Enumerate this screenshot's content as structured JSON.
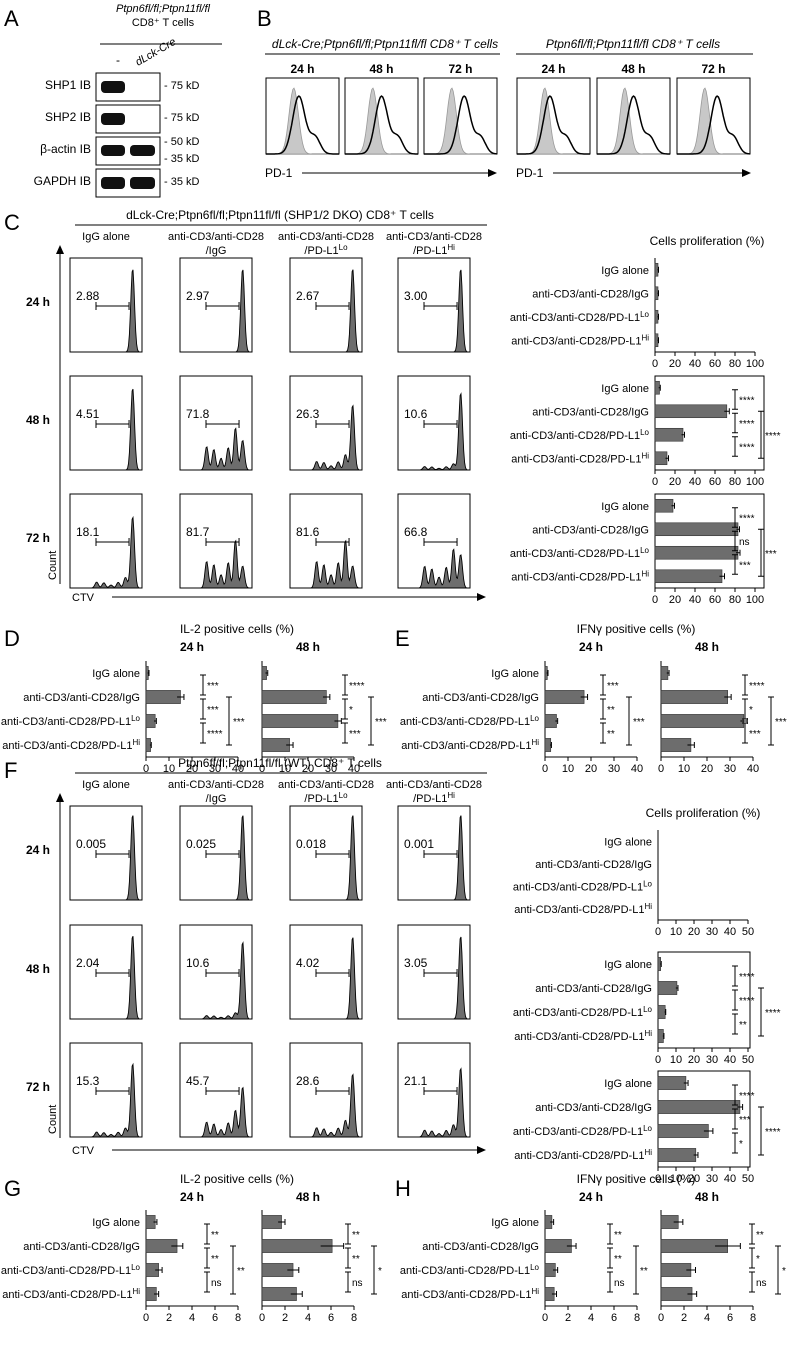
{
  "panel_labels": {
    "A": "A",
    "B": "B",
    "C": "C",
    "D": "D",
    "E": "E",
    "F": "F",
    "G": "G",
    "H": "H"
  },
  "panelA": {
    "genotype": "Ptpn6fl/fl;Ptpn11fl/fl",
    "cells": "CD8⁺ T cells",
    "lane_minus": "-",
    "lane_cre": "dLck-Cre",
    "blots": [
      {
        "label": "SHP1 IB",
        "marker": "- 75 kD"
      },
      {
        "label": "SHP2 IB",
        "marker": "- 75 kD"
      },
      {
        "label": "β-actin IB",
        "marker": "- 50 kD",
        "marker2": "- 35 kD"
      },
      {
        "label": "GAPDH IB",
        "marker": "- 35 kD"
      }
    ]
  },
  "panelB": {
    "left_title": "dLck-Cre;Ptpn6fl/fl;Ptpn11fl/fl CD8⁺ T cells",
    "right_title": "Ptpn6fl/fl;Ptpn11fl/fl CD8⁺ T cells",
    "times": [
      "24 h",
      "48 h",
      "72 h"
    ],
    "axis": "PD-1"
  },
  "panelC": {
    "title": "dLck-Cre;Ptpn6fl/fl;Ptpn11fl/fl (SHP1/2 DKO) CD8⁺ T cells",
    "conditions": [
      "IgG alone",
      "anti-CD3/anti-CD28 /IgG",
      "anti-CD3/anti-CD28 /PD-L1Lo",
      "anti-CD3/anti-CD28 /PD-L1Hi"
    ],
    "times": [
      "24 h",
      "48 h",
      "72 h"
    ],
    "gate_values": [
      [
        "2.88",
        "2.97",
        "2.67",
        "3.00"
      ],
      [
        "4.51",
        "71.8",
        "26.3",
        "10.6"
      ],
      [
        "18.1",
        "81.7",
        "81.6",
        "66.8"
      ]
    ],
    "y_axis": "Count",
    "x_axis": "CTV"
  },
  "panelF": {
    "title": "Ptpn6fl/fl;Ptpn11fl/fl (WT) CD8⁺ T cells",
    "gate_values": [
      [
        "0.005",
        "0.025",
        "0.018",
        "0.001"
      ],
      [
        "2.04",
        "10.6",
        "4.02",
        "3.05"
      ],
      [
        "15.3",
        "45.7",
        "28.6",
        "21.1"
      ]
    ],
    "y_axis": "Count",
    "x_axis": "CTV"
  },
  "bar_categories": [
    "IgG alone",
    "anti-CD3/anti-CD28/IgG",
    "anti-CD3/anti-CD28/PD-L1Lo",
    "anti-CD3/anti-CD28/PD-L1Hi"
  ],
  "chart_data": [
    {
      "id": "C_prolif",
      "type": "bar",
      "orientation": "horizontal",
      "title": "Cells proliferation (%)",
      "categories": [
        "IgG alone",
        "anti-CD3/anti-CD28/IgG",
        "anti-CD3/anti-CD28/PD-L1Lo",
        "anti-CD3/anti-CD28/PD-L1Hi"
      ],
      "xlim": [
        0,
        100
      ],
      "ticks": [
        0,
        20,
        40,
        60,
        80,
        100
      ],
      "series": [
        {
          "name": "24 h",
          "values": [
            3,
            3,
            3,
            3
          ],
          "errors": [
            0.5,
            0.5,
            0.5,
            0.5
          ],
          "sig": []
        },
        {
          "name": "48 h",
          "values": [
            4.5,
            71.8,
            28,
            12
          ],
          "errors": [
            0.8,
            2.5,
            1.5,
            1.5
          ],
          "sig": [
            {
              "a": 0,
              "b": 1,
              "label": "****"
            },
            {
              "a": 1,
              "b": 2,
              "label": "****"
            },
            {
              "a": 2,
              "b": 3,
              "label": "****"
            },
            {
              "a": 1,
              "b": 3,
              "label": "****"
            }
          ]
        },
        {
          "name": "72 h",
          "values": [
            18,
            83,
            83,
            67
          ],
          "errors": [
            1.5,
            1.5,
            2,
            2.5
          ],
          "sig": [
            {
              "a": 0,
              "b": 1,
              "label": "****"
            },
            {
              "a": 1,
              "b": 2,
              "label": "ns"
            },
            {
              "a": 2,
              "b": 3,
              "label": "***"
            },
            {
              "a": 1,
              "b": 3,
              "label": "***"
            }
          ]
        }
      ]
    },
    {
      "id": "D_il2",
      "type": "bar",
      "orientation": "horizontal",
      "title": "IL-2 positive cells (%)",
      "categories": [
        "IgG alone",
        "anti-CD3/anti-CD28/IgG",
        "anti-CD3/anti-CD28/PD-L1Lo",
        "anti-CD3/anti-CD28/PD-L1Hi"
      ],
      "series": [
        {
          "name": "24 h",
          "xlim": [
            0,
            40
          ],
          "ticks": [
            0,
            10,
            20,
            30,
            40
          ],
          "values": [
            1,
            15,
            4,
            2
          ],
          "errors": [
            0.3,
            1.5,
            0.5,
            0.3
          ],
          "sig": [
            {
              "a": 0,
              "b": 1,
              "label": "***"
            },
            {
              "a": 1,
              "b": 2,
              "label": "***"
            },
            {
              "a": 2,
              "b": 3,
              "label": "****"
            },
            {
              "a": 1,
              "b": 3,
              "label": "***"
            }
          ]
        },
        {
          "name": "48 h",
          "xlim": [
            0,
            40
          ],
          "ticks": [
            0,
            10,
            20,
            30,
            40
          ],
          "values": [
            2,
            28,
            33,
            12
          ],
          "errors": [
            0.5,
            1.5,
            1.5,
            1.5
          ],
          "sig": [
            {
              "a": 0,
              "b": 1,
              "label": "****"
            },
            {
              "a": 1,
              "b": 2,
              "label": "*"
            },
            {
              "a": 2,
              "b": 3,
              "label": "***"
            },
            {
              "a": 1,
              "b": 3,
              "label": "***"
            }
          ]
        }
      ]
    },
    {
      "id": "E_ifng",
      "type": "bar",
      "orientation": "horizontal",
      "title": "IFNγ positive cells (%)",
      "categories": [
        "IgG alone",
        "anti-CD3/anti-CD28/IgG",
        "anti-CD3/anti-CD28/PD-L1Lo",
        "anti-CD3/anti-CD28/PD-L1Hi"
      ],
      "series": [
        {
          "name": "24 h",
          "xlim": [
            0,
            40
          ],
          "ticks": [
            0,
            10,
            20,
            30,
            40
          ],
          "values": [
            1,
            17,
            5,
            2.5
          ],
          "errors": [
            0.3,
            1.5,
            0.5,
            0.3
          ],
          "sig": [
            {
              "a": 0,
              "b": 1,
              "label": "***"
            },
            {
              "a": 1,
              "b": 2,
              "label": "**"
            },
            {
              "a": 2,
              "b": 3,
              "label": "**"
            },
            {
              "a": 1,
              "b": 3,
              "label": "***"
            }
          ]
        },
        {
          "name": "48 h",
          "xlim": [
            0,
            40
          ],
          "ticks": [
            0,
            10,
            20,
            30,
            40
          ],
          "values": [
            3,
            29,
            36,
            13
          ],
          "errors": [
            0.5,
            1.5,
            1.5,
            1.5
          ],
          "sig": [
            {
              "a": 0,
              "b": 1,
              "label": "****"
            },
            {
              "a": 1,
              "b": 2,
              "label": "*"
            },
            {
              "a": 2,
              "b": 3,
              "label": "***"
            },
            {
              "a": 1,
              "b": 3,
              "label": "***"
            }
          ]
        }
      ]
    },
    {
      "id": "F_prolif",
      "type": "bar",
      "orientation": "horizontal",
      "title": "Cells proliferation (%)",
      "categories": [
        "IgG alone",
        "anti-CD3/anti-CD28/IgG",
        "anti-CD3/anti-CD28/PD-L1Lo",
        "anti-CD3/anti-CD28/PD-L1Hi"
      ],
      "xlim": [
        0,
        50
      ],
      "ticks": [
        0,
        10,
        20,
        30,
        40,
        50
      ],
      "series": [
        {
          "name": "24 h",
          "values": [
            0,
            0,
            0,
            0
          ],
          "errors": [
            0,
            0,
            0,
            0
          ],
          "sig": []
        },
        {
          "name": "48 h",
          "values": [
            1.5,
            10.5,
            4,
            3
          ],
          "errors": [
            0.3,
            0.6,
            0.3,
            0.3
          ],
          "sig": [
            {
              "a": 0,
              "b": 1,
              "label": "****"
            },
            {
              "a": 1,
              "b": 2,
              "label": "****"
            },
            {
              "a": 2,
              "b": 3,
              "label": "**"
            },
            {
              "a": 1,
              "b": 3,
              "label": "****"
            }
          ]
        },
        {
          "name": "72 h",
          "values": [
            15.5,
            45.5,
            28,
            21
          ],
          "errors": [
            1.2,
            1.5,
            2.5,
            1.2
          ],
          "sig": [
            {
              "a": 0,
              "b": 1,
              "label": "****"
            },
            {
              "a": 1,
              "b": 2,
              "label": "***"
            },
            {
              "a": 2,
              "b": 3,
              "label": "*"
            },
            {
              "a": 1,
              "b": 3,
              "label": "****"
            }
          ]
        }
      ]
    },
    {
      "id": "G_il2",
      "type": "bar",
      "orientation": "horizontal",
      "title": "IL-2 positive cells (%)",
      "categories": [
        "IgG alone",
        "anti-CD3/anti-CD28/IgG",
        "anti-CD3/anti-CD28/PD-L1Lo",
        "anti-CD3/anti-CD28/PD-L1Hi"
      ],
      "series": [
        {
          "name": "24 h",
          "xlim": [
            0,
            8
          ],
          "ticks": [
            0,
            2,
            4,
            6,
            8
          ],
          "values": [
            0.8,
            2.7,
            1.1,
            0.9
          ],
          "errors": [
            0.15,
            0.5,
            0.3,
            0.2
          ],
          "sig": [
            {
              "a": 0,
              "b": 1,
              "label": "**"
            },
            {
              "a": 1,
              "b": 2,
              "label": "**"
            },
            {
              "a": 2,
              "b": 3,
              "label": "ns"
            },
            {
              "a": 1,
              "b": 3,
              "label": "**"
            }
          ]
        },
        {
          "name": "48 h",
          "xlim": [
            0,
            8
          ],
          "ticks": [
            0,
            2,
            4,
            6,
            8
          ],
          "values": [
            1.7,
            6.1,
            2.7,
            3.0
          ],
          "errors": [
            0.3,
            1.0,
            0.5,
            0.5
          ],
          "sig": [
            {
              "a": 0,
              "b": 1,
              "label": "**"
            },
            {
              "a": 1,
              "b": 2,
              "label": "**"
            },
            {
              "a": 2,
              "b": 3,
              "label": "ns"
            },
            {
              "a": 1,
              "b": 3,
              "label": "*"
            }
          ]
        }
      ]
    },
    {
      "id": "H_ifng",
      "type": "bar",
      "orientation": "horizontal",
      "title": "IFNγ positive cells (%)",
      "categories": [
        "IgG alone",
        "anti-CD3/anti-CD28/IgG",
        "anti-CD3/anti-CD28/PD-L1Lo",
        "anti-CD3/anti-CD28/PD-L1Hi"
      ],
      "series": [
        {
          "name": "24 h",
          "xlim": [
            0,
            8
          ],
          "ticks": [
            0,
            2,
            4,
            6,
            8
          ],
          "values": [
            0.6,
            2.3,
            0.9,
            0.8
          ],
          "errors": [
            0.15,
            0.4,
            0.2,
            0.2
          ],
          "sig": [
            {
              "a": 0,
              "b": 1,
              "label": "**"
            },
            {
              "a": 1,
              "b": 2,
              "label": "**"
            },
            {
              "a": 2,
              "b": 3,
              "label": "ns"
            },
            {
              "a": 1,
              "b": 3,
              "label": "**"
            }
          ]
        },
        {
          "name": "48 h",
          "xlim": [
            0,
            8
          ],
          "ticks": [
            0,
            2,
            4,
            6,
            8
          ],
          "values": [
            1.5,
            5.8,
            2.6,
            2.7
          ],
          "errors": [
            0.4,
            1.1,
            0.4,
            0.4
          ],
          "sig": [
            {
              "a": 0,
              "b": 1,
              "label": "**"
            },
            {
              "a": 1,
              "b": 2,
              "label": "*"
            },
            {
              "a": 2,
              "b": 3,
              "label": "ns"
            },
            {
              "a": 1,
              "b": 3,
              "label": "*"
            }
          ]
        }
      ]
    }
  ],
  "colors": {
    "bar_fill": "#6d6d6d",
    "bar_stroke": "#333333",
    "histogram_fill": "#6d6d6d",
    "pd1_shaded": "#c8c8c8",
    "text": "#000000"
  }
}
